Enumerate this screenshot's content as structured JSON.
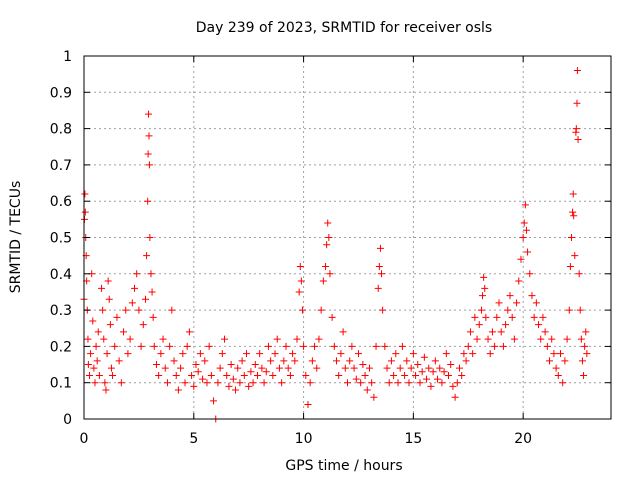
{
  "chart_data": {
    "type": "scatter",
    "title": "Day 239 of 2023, SRMTID for receiver osls",
    "xlabel": "GPS time / hours",
    "ylabel": "SRMTID / TECUs",
    "xlim": [
      0,
      24
    ],
    "ylim": [
      0,
      1
    ],
    "x_ticks": [
      0,
      5,
      10,
      15,
      20
    ],
    "x_tick_labels": [
      "0",
      "5",
      "10",
      "15",
      "20"
    ],
    "y_ticks": [
      0,
      0.1,
      0.2,
      0.3,
      0.4,
      0.5,
      0.6,
      0.7,
      0.8,
      0.9,
      1
    ],
    "y_tick_labels": [
      "0",
      "0.1",
      "0.2",
      "0.3",
      "0.4",
      "0.5",
      "0.6",
      "0.7",
      "0.8",
      "0.9",
      "1"
    ],
    "grid": true,
    "marker": "+",
    "color": "#ff0000",
    "series": [
      {
        "name": "SRMTID",
        "points": [
          [
            0.0,
            0.33
          ],
          [
            0.02,
            0.55
          ],
          [
            0.04,
            0.62
          ],
          [
            0.06,
            0.57
          ],
          [
            0.08,
            0.5
          ],
          [
            0.1,
            0.45
          ],
          [
            0.12,
            0.38
          ],
          [
            0.15,
            0.3
          ],
          [
            0.18,
            0.22
          ],
          [
            0.2,
            0.15
          ],
          [
            0.25,
            0.12
          ],
          [
            0.3,
            0.18
          ],
          [
            0.35,
            0.4
          ],
          [
            0.4,
            0.27
          ],
          [
            0.45,
            0.14
          ],
          [
            0.5,
            0.1
          ],
          [
            0.55,
            0.2
          ],
          [
            0.6,
            0.16
          ],
          [
            0.65,
            0.24
          ],
          [
            0.7,
            0.12
          ],
          [
            0.8,
            0.36
          ],
          [
            0.85,
            0.3
          ],
          [
            0.9,
            0.22
          ],
          [
            0.95,
            0.1
          ],
          [
            1.0,
            0.08
          ],
          [
            1.05,
            0.18
          ],
          [
            1.1,
            0.38
          ],
          [
            1.15,
            0.33
          ],
          [
            1.2,
            0.26
          ],
          [
            1.25,
            0.14
          ],
          [
            1.3,
            0.12
          ],
          [
            1.4,
            0.2
          ],
          [
            1.5,
            0.28
          ],
          [
            1.6,
            0.16
          ],
          [
            1.7,
            0.1
          ],
          [
            1.8,
            0.24
          ],
          [
            1.9,
            0.3
          ],
          [
            2.0,
            0.18
          ],
          [
            2.1,
            0.22
          ],
          [
            2.2,
            0.32
          ],
          [
            2.3,
            0.36
          ],
          [
            2.4,
            0.4
          ],
          [
            2.5,
            0.3
          ],
          [
            2.6,
            0.2
          ],
          [
            2.7,
            0.26
          ],
          [
            2.8,
            0.33
          ],
          [
            2.85,
            0.45
          ],
          [
            2.9,
            0.6
          ],
          [
            2.92,
            0.73
          ],
          [
            2.94,
            0.84
          ],
          [
            2.96,
            0.78
          ],
          [
            2.98,
            0.7
          ],
          [
            3.0,
            0.5
          ],
          [
            3.05,
            0.4
          ],
          [
            3.1,
            0.35
          ],
          [
            3.15,
            0.28
          ],
          [
            3.2,
            0.2
          ],
          [
            3.3,
            0.15
          ],
          [
            3.4,
            0.12
          ],
          [
            3.5,
            0.18
          ],
          [
            3.6,
            0.22
          ],
          [
            3.7,
            0.14
          ],
          [
            3.8,
            0.1
          ],
          [
            3.9,
            0.2
          ],
          [
            4.0,
            0.3
          ],
          [
            4.1,
            0.16
          ],
          [
            4.2,
            0.12
          ],
          [
            4.3,
            0.08
          ],
          [
            4.4,
            0.14
          ],
          [
            4.5,
            0.18
          ],
          [
            4.6,
            0.1
          ],
          [
            4.7,
            0.2
          ],
          [
            4.8,
            0.24
          ],
          [
            4.9,
            0.12
          ],
          [
            5.0,
            0.09
          ],
          [
            5.1,
            0.15
          ],
          [
            5.2,
            0.13
          ],
          [
            5.3,
            0.18
          ],
          [
            5.4,
            0.11
          ],
          [
            5.5,
            0.16
          ],
          [
            5.6,
            0.1
          ],
          [
            5.7,
            0.2
          ],
          [
            5.8,
            0.12
          ],
          [
            5.9,
            0.05
          ],
          [
            6.0,
            0.0
          ],
          [
            6.1,
            0.1
          ],
          [
            6.2,
            0.14
          ],
          [
            6.3,
            0.18
          ],
          [
            6.4,
            0.22
          ],
          [
            6.5,
            0.12
          ],
          [
            6.6,
            0.09
          ],
          [
            6.7,
            0.15
          ],
          [
            6.8,
            0.11
          ],
          [
            6.9,
            0.08
          ],
          [
            7.0,
            0.14
          ],
          [
            7.1,
            0.1
          ],
          [
            7.2,
            0.16
          ],
          [
            7.3,
            0.12
          ],
          [
            7.4,
            0.18
          ],
          [
            7.5,
            0.09
          ],
          [
            7.6,
            0.13
          ],
          [
            7.7,
            0.1
          ],
          [
            7.8,
            0.15
          ],
          [
            7.9,
            0.12
          ],
          [
            8.0,
            0.18
          ],
          [
            8.1,
            0.14
          ],
          [
            8.2,
            0.1
          ],
          [
            8.3,
            0.13
          ],
          [
            8.4,
            0.2
          ],
          [
            8.5,
            0.16
          ],
          [
            8.6,
            0.12
          ],
          [
            8.7,
            0.18
          ],
          [
            8.8,
            0.22
          ],
          [
            8.9,
            0.14
          ],
          [
            9.0,
            0.1
          ],
          [
            9.1,
            0.16
          ],
          [
            9.2,
            0.2
          ],
          [
            9.3,
            0.14
          ],
          [
            9.4,
            0.12
          ],
          [
            9.5,
            0.18
          ],
          [
            9.6,
            0.16
          ],
          [
            9.7,
            0.22
          ],
          [
            9.8,
            0.35
          ],
          [
            9.85,
            0.42
          ],
          [
            9.9,
            0.38
          ],
          [
            9.95,
            0.3
          ],
          [
            10.0,
            0.2
          ],
          [
            10.1,
            0.12
          ],
          [
            10.2,
            0.04
          ],
          [
            10.3,
            0.1
          ],
          [
            10.4,
            0.16
          ],
          [
            10.5,
            0.2
          ],
          [
            10.6,
            0.14
          ],
          [
            10.7,
            0.22
          ],
          [
            10.8,
            0.3
          ],
          [
            10.9,
            0.38
          ],
          [
            11.0,
            0.42
          ],
          [
            11.05,
            0.48
          ],
          [
            11.1,
            0.54
          ],
          [
            11.15,
            0.5
          ],
          [
            11.2,
            0.4
          ],
          [
            11.3,
            0.28
          ],
          [
            11.4,
            0.2
          ],
          [
            11.5,
            0.16
          ],
          [
            11.6,
            0.12
          ],
          [
            11.7,
            0.18
          ],
          [
            11.8,
            0.24
          ],
          [
            11.9,
            0.14
          ],
          [
            12.0,
            0.1
          ],
          [
            12.1,
            0.16
          ],
          [
            12.2,
            0.2
          ],
          [
            12.3,
            0.14
          ],
          [
            12.4,
            0.11
          ],
          [
            12.5,
            0.18
          ],
          [
            12.6,
            0.1
          ],
          [
            12.7,
            0.15
          ],
          [
            12.8,
            0.12
          ],
          [
            12.9,
            0.08
          ],
          [
            13.0,
            0.14
          ],
          [
            13.1,
            0.1
          ],
          [
            13.2,
            0.06
          ],
          [
            13.3,
            0.2
          ],
          [
            13.4,
            0.36
          ],
          [
            13.45,
            0.42
          ],
          [
            13.5,
            0.47
          ],
          [
            13.55,
            0.4
          ],
          [
            13.6,
            0.3
          ],
          [
            13.7,
            0.2
          ],
          [
            13.8,
            0.14
          ],
          [
            13.9,
            0.1
          ],
          [
            14.0,
            0.16
          ],
          [
            14.1,
            0.12
          ],
          [
            14.2,
            0.18
          ],
          [
            14.3,
            0.1
          ],
          [
            14.4,
            0.14
          ],
          [
            14.5,
            0.2
          ],
          [
            14.6,
            0.12
          ],
          [
            14.7,
            0.16
          ],
          [
            14.8,
            0.1
          ],
          [
            14.9,
            0.14
          ],
          [
            15.0,
            0.18
          ],
          [
            15.1,
            0.12
          ],
          [
            15.2,
            0.15
          ],
          [
            15.3,
            0.1
          ],
          [
            15.4,
            0.13
          ],
          [
            15.5,
            0.17
          ],
          [
            15.6,
            0.11
          ],
          [
            15.7,
            0.14
          ],
          [
            15.8,
            0.09
          ],
          [
            15.9,
            0.13
          ],
          [
            16.0,
            0.16
          ],
          [
            16.1,
            0.11
          ],
          [
            16.2,
            0.14
          ],
          [
            16.3,
            0.1
          ],
          [
            16.4,
            0.13
          ],
          [
            16.5,
            0.18
          ],
          [
            16.6,
            0.12
          ],
          [
            16.7,
            0.15
          ],
          [
            16.8,
            0.09
          ],
          [
            16.9,
            0.06
          ],
          [
            17.0,
            0.1
          ],
          [
            17.1,
            0.14
          ],
          [
            17.2,
            0.12
          ],
          [
            17.3,
            0.18
          ],
          [
            17.4,
            0.16
          ],
          [
            17.5,
            0.2
          ],
          [
            17.6,
            0.24
          ],
          [
            17.7,
            0.18
          ],
          [
            17.8,
            0.28
          ],
          [
            17.9,
            0.22
          ],
          [
            18.0,
            0.26
          ],
          [
            18.1,
            0.3
          ],
          [
            18.15,
            0.34
          ],
          [
            18.2,
            0.39
          ],
          [
            18.25,
            0.36
          ],
          [
            18.3,
            0.28
          ],
          [
            18.4,
            0.22
          ],
          [
            18.5,
            0.18
          ],
          [
            18.6,
            0.24
          ],
          [
            18.7,
            0.2
          ],
          [
            18.8,
            0.28
          ],
          [
            18.9,
            0.32
          ],
          [
            19.0,
            0.24
          ],
          [
            19.1,
            0.2
          ],
          [
            19.2,
            0.26
          ],
          [
            19.3,
            0.3
          ],
          [
            19.4,
            0.34
          ],
          [
            19.5,
            0.28
          ],
          [
            19.6,
            0.22
          ],
          [
            19.7,
            0.32
          ],
          [
            19.8,
            0.38
          ],
          [
            19.9,
            0.44
          ],
          [
            20.0,
            0.5
          ],
          [
            20.05,
            0.54
          ],
          [
            20.1,
            0.59
          ],
          [
            20.15,
            0.52
          ],
          [
            20.2,
            0.46
          ],
          [
            20.3,
            0.4
          ],
          [
            20.4,
            0.34
          ],
          [
            20.5,
            0.28
          ],
          [
            20.6,
            0.32
          ],
          [
            20.7,
            0.26
          ],
          [
            20.8,
            0.22
          ],
          [
            20.9,
            0.28
          ],
          [
            21.0,
            0.24
          ],
          [
            21.1,
            0.2
          ],
          [
            21.2,
            0.16
          ],
          [
            21.3,
            0.22
          ],
          [
            21.4,
            0.18
          ],
          [
            21.5,
            0.14
          ],
          [
            21.6,
            0.12
          ],
          [
            21.7,
            0.18
          ],
          [
            21.8,
            0.1
          ],
          [
            21.9,
            0.16
          ],
          [
            22.0,
            0.22
          ],
          [
            22.1,
            0.3
          ],
          [
            22.15,
            0.42
          ],
          [
            22.2,
            0.5
          ],
          [
            22.25,
            0.57
          ],
          [
            22.28,
            0.62
          ],
          [
            22.3,
            0.56
          ],
          [
            22.35,
            0.45
          ],
          [
            22.4,
            0.79
          ],
          [
            22.42,
            0.8
          ],
          [
            22.45,
            0.87
          ],
          [
            22.47,
            0.96
          ],
          [
            22.5,
            0.77
          ],
          [
            22.55,
            0.4
          ],
          [
            22.6,
            0.3
          ],
          [
            22.65,
            0.22
          ],
          [
            22.7,
            0.16
          ],
          [
            22.75,
            0.12
          ],
          [
            22.8,
            0.2
          ],
          [
            22.85,
            0.24
          ],
          [
            22.9,
            0.18
          ]
        ]
      }
    ]
  }
}
